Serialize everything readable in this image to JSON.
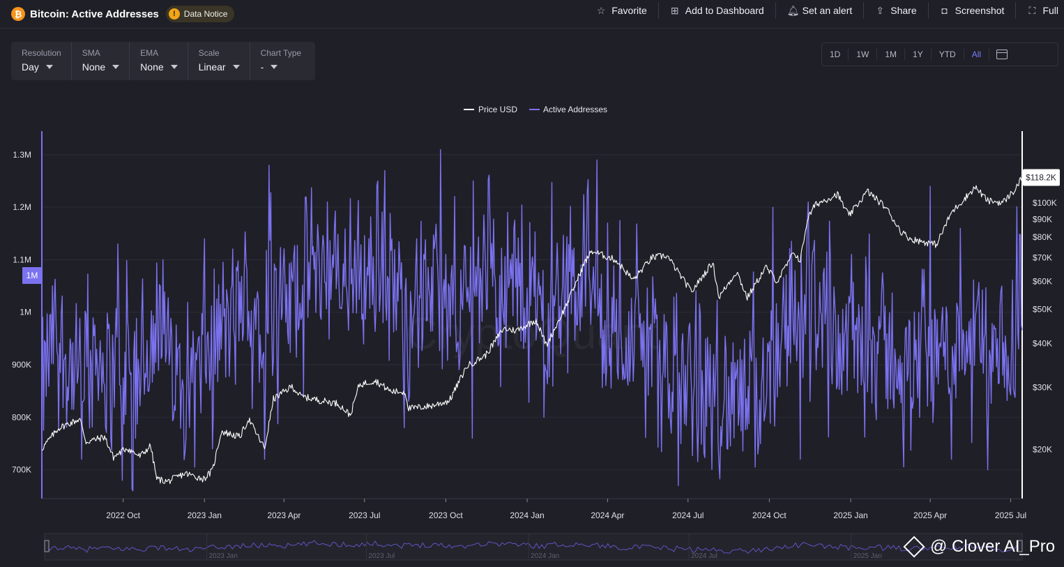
{
  "header": {
    "coin_icon": "bitcoin-icon",
    "coin_symbol": "₿",
    "title": "Bitcoin: Active Addresses",
    "notice_icon_glyph": "!",
    "notice_label": "Data Notice",
    "actions": [
      {
        "label": "Favorite",
        "icon": "star-icon",
        "glyph": "☆"
      },
      {
        "label": "Add to Dashboard",
        "icon": "dashboard-icon",
        "glyph": "⊞"
      },
      {
        "label": "Set an alert",
        "icon": "bell-icon",
        "glyph": "🔔︎"
      },
      {
        "label": "Share",
        "icon": "share-icon",
        "glyph": "⇪"
      },
      {
        "label": "Screenshot",
        "icon": "camera-icon",
        "glyph": "◘"
      },
      {
        "label": "Full",
        "icon": "fullscreen-icon",
        "glyph": "⛶"
      }
    ]
  },
  "controls": [
    {
      "label": "Resolution",
      "value": "Day"
    },
    {
      "label": "SMA",
      "value": "None"
    },
    {
      "label": "EMA",
      "value": "None"
    },
    {
      "label": "Scale",
      "value": "Linear"
    },
    {
      "label": "Chart Type",
      "value": "-"
    }
  ],
  "ranges": {
    "options": [
      "1D",
      "1W",
      "1M",
      "1Y",
      "YTD",
      "All"
    ],
    "selected": "All",
    "calendar_icon": "calendar-icon"
  },
  "colors": {
    "background": "#1f1f27",
    "price": "#ffffff",
    "active_addresses": "#7b72f0",
    "grid": "#2c2c36",
    "axis_text": "#e0e0e8"
  },
  "chart_data": {
    "type": "line",
    "title": "Bitcoin: Active Addresses",
    "legend_position": "top-center",
    "grid": true,
    "x_range": [
      "2022-07-01",
      "2025-07-14"
    ],
    "x_ticks": [
      "2022 Oct",
      "2023 Jan",
      "2023 Apr",
      "2023 Jul",
      "2023 Oct",
      "2024 Jan",
      "2024 Apr",
      "2024 Jul",
      "2024 Oct",
      "2025 Jan",
      "2025 Apr",
      "2025 Jul"
    ],
    "y_left": {
      "scale": "linear",
      "range": [
        645000,
        1345000
      ],
      "ticks": [
        700000,
        800000,
        900000,
        1000000,
        1100000,
        1200000,
        1300000
      ],
      "tick_labels": [
        "700K",
        "800K",
        "900K",
        "1M",
        "1.1M",
        "1.2M",
        "1.3M"
      ],
      "cursor_marker": "1M",
      "cursor_value": 1070000
    },
    "y_right": {
      "scale": "log",
      "range": [
        14500,
        160000
      ],
      "ticks": [
        20000,
        30000,
        40000,
        50000,
        60000,
        70000,
        80000,
        90000,
        100000
      ],
      "tick_labels": [
        "$20K",
        "$30K",
        "$40K",
        "$50K",
        "$60K",
        "$70K",
        "$80K",
        "$90K",
        "$100K"
      ],
      "last_price_label": "$118.2K",
      "last_price_value": 118200
    },
    "series": [
      {
        "name": "Price USD",
        "axis": "right",
        "color": "#ffffff",
        "points": [
          [
            "2022-07-01",
            20100
          ],
          [
            "2022-07-20",
            23000
          ],
          [
            "2022-08-13",
            24400
          ],
          [
            "2022-08-20",
            21000
          ],
          [
            "2022-09-10",
            21700
          ],
          [
            "2022-09-20",
            19000
          ],
          [
            "2022-10-05",
            20200
          ],
          [
            "2022-10-20",
            19100
          ],
          [
            "2022-11-01",
            20500
          ],
          [
            "2022-11-08",
            16500
          ],
          [
            "2022-11-20",
            16200
          ],
          [
            "2022-12-10",
            17100
          ],
          [
            "2022-12-31",
            16500
          ],
          [
            "2023-01-10",
            17400
          ],
          [
            "2023-01-20",
            22500
          ],
          [
            "2023-02-10",
            21700
          ],
          [
            "2023-02-20",
            24400
          ],
          [
            "2023-03-10",
            20100
          ],
          [
            "2023-03-20",
            27800
          ],
          [
            "2023-04-10",
            30200
          ],
          [
            "2023-04-20",
            28300
          ],
          [
            "2023-05-10",
            27600
          ],
          [
            "2023-06-01",
            27000
          ],
          [
            "2023-06-15",
            25000
          ],
          [
            "2023-06-25",
            30500
          ],
          [
            "2023-07-13",
            31400
          ],
          [
            "2023-07-31",
            29200
          ],
          [
            "2023-08-16",
            29100
          ],
          [
            "2023-08-20",
            26100
          ],
          [
            "2023-09-15",
            26600
          ],
          [
            "2023-10-05",
            27500
          ],
          [
            "2023-10-25",
            34500
          ],
          [
            "2023-11-15",
            37000
          ],
          [
            "2023-12-05",
            44000
          ],
          [
            "2023-12-20",
            43500
          ],
          [
            "2024-01-11",
            46600
          ],
          [
            "2024-01-23",
            39500
          ],
          [
            "2024-02-15",
            51800
          ],
          [
            "2024-03-05",
            67000
          ],
          [
            "2024-03-14",
            73100
          ],
          [
            "2024-04-10",
            69000
          ],
          [
            "2024-04-30",
            60500
          ],
          [
            "2024-05-21",
            70000
          ],
          [
            "2024-06-07",
            71000
          ],
          [
            "2024-07-05",
            56000
          ],
          [
            "2024-07-29",
            68000
          ],
          [
            "2024-08-05",
            54000
          ],
          [
            "2024-08-25",
            64000
          ],
          [
            "2024-09-06",
            53900
          ],
          [
            "2024-09-27",
            65800
          ],
          [
            "2024-10-10",
            60000
          ],
          [
            "2024-10-29",
            72500
          ],
          [
            "2024-11-05",
            68500
          ],
          [
            "2024-11-13",
            90000
          ],
          [
            "2024-11-22",
            99000
          ],
          [
            "2024-12-17",
            106000
          ],
          [
            "2024-12-30",
            92000
          ],
          [
            "2025-01-20",
            108000
          ],
          [
            "2025-02-10",
            97000
          ],
          [
            "2025-02-27",
            83000
          ],
          [
            "2025-03-10",
            79000
          ],
          [
            "2025-04-08",
            76300
          ],
          [
            "2025-04-25",
            94000
          ],
          [
            "2025-05-22",
            111000
          ],
          [
            "2025-06-05",
            101500
          ],
          [
            "2025-06-22",
            100300
          ],
          [
            "2025-07-05",
            108500
          ],
          [
            "2025-07-14",
            118200
          ]
        ]
      },
      {
        "name": "Active Addresses",
        "axis": "left",
        "color": "#7b72f0",
        "points": [
          [
            "2022-07-01",
            840000
          ],
          [
            "2022-07-15",
            960000
          ],
          [
            "2022-08-01",
            900000
          ],
          [
            "2022-08-15",
            860000
          ],
          [
            "2022-09-01",
            930000
          ],
          [
            "2022-09-15",
            880000
          ],
          [
            "2022-10-01",
            910000
          ],
          [
            "2022-10-15",
            870000
          ],
          [
            "2022-11-01",
            950000
          ],
          [
            "2022-11-15",
            930000
          ],
          [
            "2022-12-01",
            880000
          ],
          [
            "2022-12-15",
            860000
          ],
          [
            "2023-01-01",
            910000
          ],
          [
            "2023-01-15",
            960000
          ],
          [
            "2023-02-01",
            980000
          ],
          [
            "2023-02-15",
            1020000
          ],
          [
            "2023-03-01",
            1000000
          ],
          [
            "2023-03-15",
            1060000
          ],
          [
            "2023-04-01",
            1000000
          ],
          [
            "2023-04-15",
            1030000
          ],
          [
            "2023-05-01",
            1100000
          ],
          [
            "2023-05-15",
            1080000
          ],
          [
            "2023-06-01",
            1060000
          ],
          [
            "2023-06-15",
            1050000
          ],
          [
            "2023-07-01",
            1070000
          ],
          [
            "2023-07-15",
            1080000
          ],
          [
            "2023-08-01",
            1030000
          ],
          [
            "2023-08-15",
            1010000
          ],
          [
            "2023-09-01",
            1040000
          ],
          [
            "2023-09-15",
            1060000
          ],
          [
            "2023-10-01",
            1000000
          ],
          [
            "2023-10-15",
            990000
          ],
          [
            "2023-11-01",
            1060000
          ],
          [
            "2023-11-15",
            1090000
          ],
          [
            "2023-12-01",
            1080000
          ],
          [
            "2023-12-15",
            1070000
          ],
          [
            "2024-01-01",
            1020000
          ],
          [
            "2024-01-15",
            1000000
          ],
          [
            "2024-02-01",
            1040000
          ],
          [
            "2024-02-15",
            1070000
          ],
          [
            "2024-03-01",
            1030000
          ],
          [
            "2024-03-15",
            1050000
          ],
          [
            "2024-04-01",
            980000
          ],
          [
            "2024-04-15",
            960000
          ],
          [
            "2024-05-01",
            940000
          ],
          [
            "2024-05-15",
            950000
          ],
          [
            "2024-06-01",
            920000
          ],
          [
            "2024-06-15",
            900000
          ],
          [
            "2024-07-01",
            880000
          ],
          [
            "2024-07-15",
            860000
          ],
          [
            "2024-08-01",
            850000
          ],
          [
            "2024-08-15",
            830000
          ],
          [
            "2024-09-01",
            820000
          ],
          [
            "2024-09-15",
            840000
          ],
          [
            "2024-10-01",
            900000
          ],
          [
            "2024-10-15",
            980000
          ],
          [
            "2024-11-01",
            1020000
          ],
          [
            "2024-11-15",
            1050000
          ],
          [
            "2024-12-01",
            990000
          ],
          [
            "2024-12-15",
            970000
          ],
          [
            "2025-01-01",
            930000
          ],
          [
            "2025-01-15",
            950000
          ],
          [
            "2025-02-01",
            940000
          ],
          [
            "2025-02-15",
            920000
          ],
          [
            "2025-03-01",
            910000
          ],
          [
            "2025-03-15",
            900000
          ],
          [
            "2025-04-01",
            920000
          ],
          [
            "2025-04-15",
            930000
          ],
          [
            "2025-05-01",
            950000
          ],
          [
            "2025-05-15",
            970000
          ],
          [
            "2025-06-01",
            940000
          ],
          [
            "2025-06-15",
            880000
          ],
          [
            "2025-07-01",
            900000
          ],
          [
            "2025-07-14",
            1070000
          ]
        ],
        "peaks": [
          [
            "2022-09-25",
            1130000
          ],
          [
            "2022-11-15",
            1100000
          ],
          [
            "2023-01-01",
            1140000
          ],
          [
            "2023-03-15",
            1280000
          ],
          [
            "2023-05-20",
            1210000
          ],
          [
            "2023-09-25",
            1310000
          ],
          [
            "2023-11-01",
            1250000
          ],
          [
            "2024-03-20",
            1290000
          ],
          [
            "2024-10-05",
            1200000
          ],
          [
            "2024-11-14",
            1210000
          ],
          [
            "2025-04-01",
            1240000
          ],
          [
            "2025-05-05",
            1160000
          ]
        ],
        "troughs": [
          [
            "2022-08-15",
            720000
          ],
          [
            "2022-10-15",
            760000
          ],
          [
            "2023-01-10",
            740000
          ],
          [
            "2023-03-10",
            720000
          ],
          [
            "2023-10-31",
            760000
          ],
          [
            "2024-01-20",
            800000
          ],
          [
            "2024-06-20",
            670000
          ],
          [
            "2024-09-15",
            705000
          ],
          [
            "2024-11-05",
            720000
          ],
          [
            "2025-03-01",
            780000
          ],
          [
            "2025-04-25",
            720000
          ],
          [
            "2025-06-05",
            700000
          ]
        ]
      }
    ]
  },
  "navigator": {
    "labels": [
      "2023 Jan",
      "2023 Jul",
      "2024 Jan",
      "2024 Jul",
      "2025 Jan"
    ]
  },
  "watermark": {
    "icon": "clover-logo-icon",
    "text": "@ Clover AI_Pro"
  }
}
